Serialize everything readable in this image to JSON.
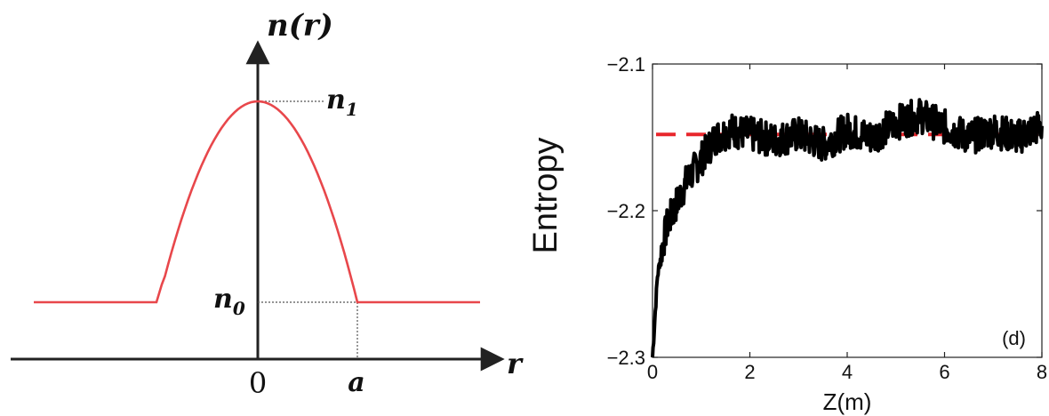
{
  "chart_data": [
    {
      "type": "line",
      "title": "",
      "xlabel": "r",
      "ylabel": "n(r)",
      "annotations": {
        "peak_label": "n",
        "peak_sub": "1",
        "base_label": "n",
        "base_sub": "0",
        "x_origin": "0",
        "x_edge": "a"
      },
      "profile": {
        "peak_value": "n1",
        "base_value": "n0",
        "core_radius": "a",
        "shape": "parabolic core with step cladding"
      },
      "series_color": "#e8474b",
      "axis_color": "#222222"
    },
    {
      "type": "line",
      "title": "",
      "xlabel": "Z(m)",
      "ylabel": "Entropy",
      "panel_label": "(d)",
      "xlim": [
        0,
        8
      ],
      "ylim": [
        -2.3,
        -2.1
      ],
      "xticks": [
        0,
        2,
        4,
        6,
        8
      ],
      "xtick_labels": [
        "0",
        "2",
        "4",
        "6",
        "8"
      ],
      "yticks": [
        -2.1,
        -2.2,
        -2.3
      ],
      "ytick_labels": [
        "−2.1",
        "−2.2",
        "−2.3"
      ],
      "reference_line": {
        "y": -2.148,
        "color": "#e8262c",
        "style": "dashed"
      },
      "series": [
        {
          "color": "#000000",
          "x": [
            0,
            0.1,
            0.2,
            0.3,
            0.5,
            0.7,
            1.0,
            1.3,
            1.6,
            2.0,
            2.5,
            3.0,
            3.5,
            4.0,
            4.5,
            5.0,
            5.5,
            6.0,
            6.5,
            7.0,
            7.5,
            8.0
          ],
          "y": [
            -2.3,
            -2.245,
            -2.225,
            -2.21,
            -2.195,
            -2.18,
            -2.165,
            -2.15,
            -2.145,
            -2.148,
            -2.152,
            -2.148,
            -2.155,
            -2.145,
            -2.15,
            -2.14,
            -2.135,
            -2.143,
            -2.15,
            -2.145,
            -2.15,
            -2.142
          ]
        }
      ]
    }
  ]
}
